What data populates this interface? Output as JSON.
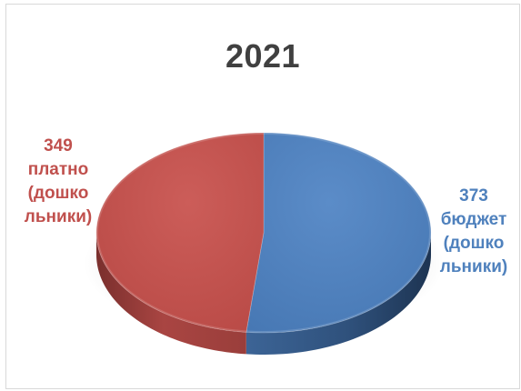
{
  "chart_data": {
    "type": "pie",
    "title": "2021",
    "style": "3d",
    "slices": [
      {
        "label": "бюджет (дошкольники)",
        "value": 373,
        "color": "#4f81bd",
        "lines": [
          "373",
          "бюджет",
          "(дошко",
          "льники)"
        ]
      },
      {
        "label": "платно (дошкольники)",
        "value": 349,
        "color": "#c0504d",
        "lines": [
          "349",
          "платно",
          "(дошко",
          "льники)"
        ]
      }
    ]
  }
}
